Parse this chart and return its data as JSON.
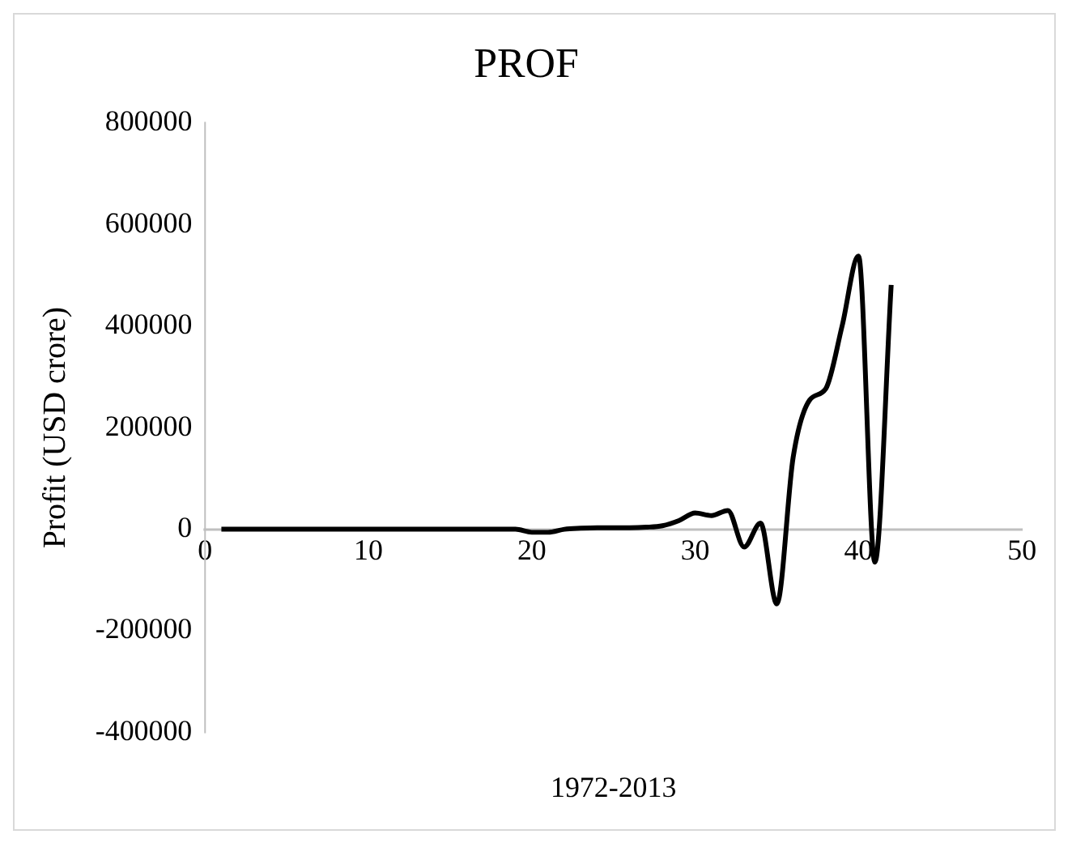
{
  "chart_data": {
    "type": "line",
    "title": "PROF",
    "xlabel": "1972-2013",
    "ylabel": "Profit (USD crore)",
    "x": [
      1,
      2,
      3,
      4,
      5,
      6,
      7,
      8,
      9,
      10,
      11,
      12,
      13,
      14,
      15,
      16,
      17,
      18,
      19,
      20,
      21,
      22,
      23,
      24,
      25,
      26,
      27,
      28,
      29,
      30,
      31,
      32,
      33,
      34,
      35,
      36,
      37,
      38,
      39,
      40,
      41,
      42
    ],
    "series": [
      {
        "color": "#000000",
        "values": [
          0,
          0,
          0,
          0,
          0,
          0,
          0,
          0,
          0,
          0,
          0,
          0,
          0,
          0,
          0,
          0,
          0,
          0,
          0,
          -6000,
          -6000,
          0,
          2000,
          3000,
          3000,
          3000,
          4000,
          7000,
          17000,
          32000,
          27000,
          37000,
          -35000,
          12000,
          -147000,
          142000,
          254000,
          277000,
          401000,
          538000,
          -65000,
          481000
        ]
      }
    ],
    "xlim": [
      0,
      50
    ],
    "xticks": [
      0,
      10,
      20,
      30,
      40,
      50
    ],
    "ylim": [
      -400000,
      800000
    ],
    "yticks": [
      -400000,
      -200000,
      0,
      200000,
      400000,
      600000,
      800000
    ],
    "grid": false,
    "legend": false,
    "marker": "none",
    "line_style": "solid"
  }
}
